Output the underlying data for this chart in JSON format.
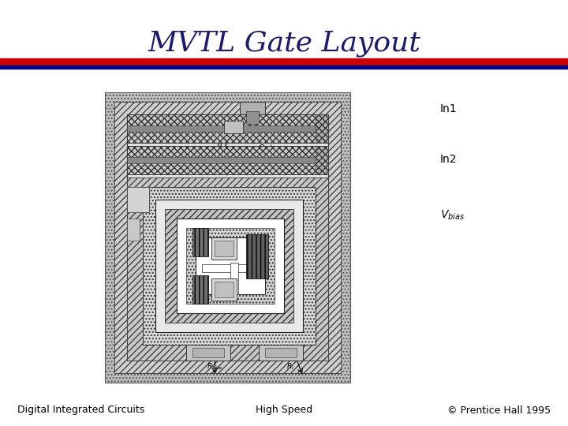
{
  "title": "MVTL Gate Layout",
  "title_color": "#1a1a6e",
  "title_fontsize": 26,
  "footer_left": "Digital Integrated Circuits",
  "footer_center": "High Speed",
  "footer_right": "© Prentice Hall 1995",
  "footer_fontsize": 9,
  "stripe1_color": "#cc0000",
  "stripe2_color": "#00008b",
  "bg_color": "#ffffff"
}
